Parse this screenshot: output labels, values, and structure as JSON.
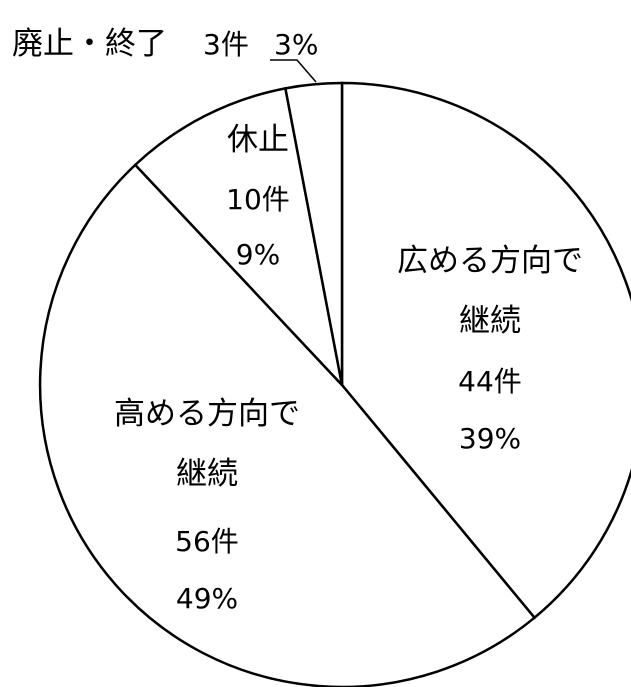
{
  "chart_data": {
    "type": "pie",
    "title": "",
    "start_angle_deg": 0,
    "direction": "clockwise",
    "slices": [
      {
        "label_lines": [
          "広める方向で",
          "継続"
        ],
        "count": "44件",
        "percent": "39%",
        "value": 39
      },
      {
        "label_lines": [
          "高める方向で",
          "継続"
        ],
        "count": "56件",
        "percent": "49%",
        "value": 49
      },
      {
        "label_lines": [
          "休止"
        ],
        "count": "10件",
        "percent": "9%",
        "value": 9
      },
      {
        "label_lines": [
          "廃止・終了"
        ],
        "count": "3件",
        "percent": "3%",
        "value": 3
      }
    ],
    "colors": {
      "fill": "#ffffff",
      "stroke": "#000000"
    }
  }
}
